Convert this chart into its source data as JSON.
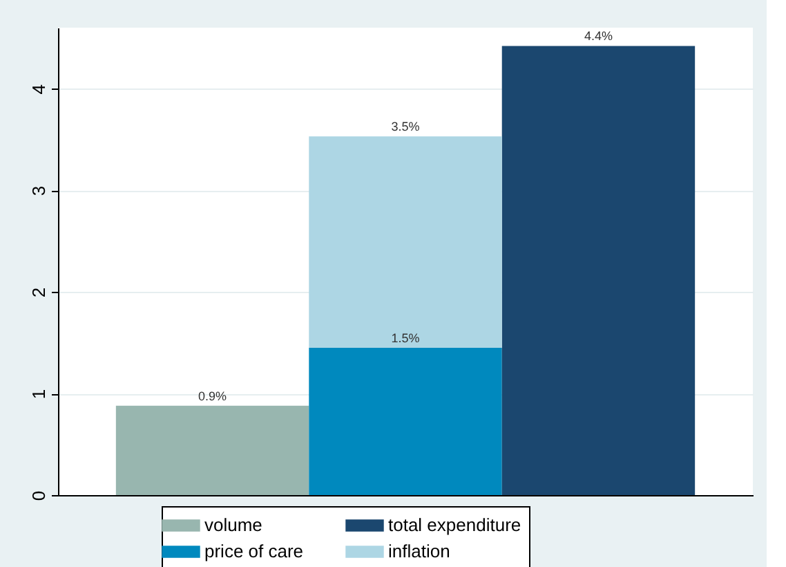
{
  "chart_data": {
    "type": "bar",
    "stacked": true,
    "categories": [
      null,
      null,
      null
    ],
    "series": [
      {
        "name": "volume",
        "color": "#98b6af",
        "values": [
          0.88,
          null,
          null
        ],
        "value_labels": [
          "0.9%",
          null,
          null
        ]
      },
      {
        "name": "price of care",
        "color": "#0089be",
        "values": [
          null,
          1.45,
          null
        ],
        "value_labels": [
          null,
          "1.5%",
          null
        ]
      },
      {
        "name": "total expenditure",
        "color": "#1b476f",
        "values": [
          null,
          null,
          4.42
        ],
        "value_labels": [
          null,
          null,
          "4.4%"
        ]
      },
      {
        "name": "inflation",
        "color": "#add6e4",
        "values": [
          null,
          2.08,
          null
        ]
      }
    ],
    "totals": [
      null,
      "3.5%",
      null
    ],
    "ylim": [
      0,
      4.6
    ],
    "yticks": [
      0,
      1,
      2,
      3,
      4
    ],
    "grid": "y",
    "legend": "bottom",
    "tick_labels": "y"
  }
}
